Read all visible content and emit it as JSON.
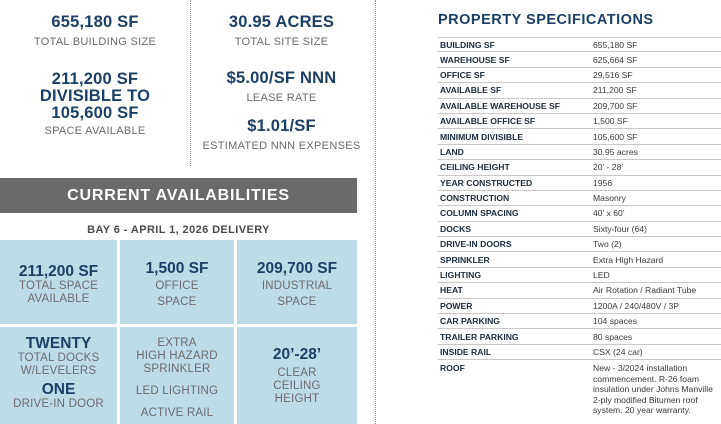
{
  "stats": {
    "building_size": {
      "value": "655,180 SF",
      "label": "TOTAL BUILDING SIZE"
    },
    "site_size": {
      "value": "30.95 ACRES",
      "label": "TOTAL SITE SIZE"
    },
    "space_available": {
      "value_line1": "211,200 SF",
      "value_line2": "DIVISIBLE TO",
      "value_line3": "105,600 SF",
      "label": "SPACE AVAILABLE"
    },
    "lease_rate": {
      "value": "$5.00/SF NNN",
      "label": "LEASE RATE"
    },
    "nnn_expenses": {
      "value": "$1.01/SF",
      "label": "ESTIMATED NNN EXPENSES"
    }
  },
  "availabilities": {
    "title": "CURRENT AVAILABILITIES",
    "bay": "BAY 6 - APRIL 1, 2026 DELIVERY",
    "cells": {
      "total_space": {
        "value": "211,200 SF",
        "label1": "TOTAL SPACE",
        "label2": "AVAILABLE"
      },
      "office_space": {
        "value": "1,500 SF",
        "label1": "OFFICE",
        "label2": "SPACE"
      },
      "industrial_space": {
        "value": "209,700 SF",
        "label1": "INDUSTRIAL",
        "label2": "SPACE"
      },
      "docks": {
        "value": "TWENTY",
        "label1": "TOTAL DOCKS",
        "label2": "W/LEVELERS",
        "value2": "ONE",
        "label3": "DRIVE-IN DOOR"
      },
      "features": {
        "line1": "EXTRA",
        "line2": "HIGH HAZARD",
        "line3": "SPRINKLER",
        "line4": "LED LIGHTING",
        "line5": "ACTIVE RAIL"
      },
      "height": {
        "value": "20’-28’",
        "label1": "CLEAR",
        "label2": "CEILING",
        "label3": "HEIGHT"
      }
    }
  },
  "specs": {
    "title": "PROPERTY SPECIFICATIONS",
    "rows": [
      {
        "k": "BUILDING SF",
        "v": "655,180 SF"
      },
      {
        "k": "WAREHOUSE SF",
        "v": "625,664 SF"
      },
      {
        "k": "OFFICE SF",
        "v": "29,516 SF"
      },
      {
        "k": "AVAILABLE SF",
        "v": "211,200 SF"
      },
      {
        "k": "AVAILABLE WAREHOUSE SF",
        "v": "209,700 SF"
      },
      {
        "k": "AVAILABLE OFFICE SF",
        "v": "1,500 SF"
      },
      {
        "k": "MINIMUM DIVISIBLE",
        "v": "105,600 SF"
      },
      {
        "k": "LAND",
        "v": "30.95 acres"
      },
      {
        "k": "CEILING HEIGHT",
        "v": "20’ - 28’"
      },
      {
        "k": "YEAR CONSTRUCTED",
        "v": "1956"
      },
      {
        "k": "CONSTRUCTION",
        "v": "Masonry"
      },
      {
        "k": "COLUMN SPACING",
        "v": "40’ x 60’"
      },
      {
        "k": "DOCKS",
        "v": "Sixty-four (64)"
      },
      {
        "k": "DRIVE-IN DOORS",
        "v": "Two (2)"
      },
      {
        "k": "SPRINKLER",
        "v": "Extra High Hazard"
      },
      {
        "k": "LIGHTING",
        "v": "LED"
      },
      {
        "k": "HEAT",
        "v": "Air Rotation / Radiant Tube"
      },
      {
        "k": "POWER",
        "v": "1200A / 240/480V / 3P"
      },
      {
        "k": "CAR PARKING",
        "v": "104 spaces"
      },
      {
        "k": "TRAILER PARKING",
        "v": "80 spaces"
      },
      {
        "k": "INSIDE RAIL",
        "v": "CSX (24 car)"
      },
      {
        "k": "ROOF",
        "v": "New - 3/2024 installation commencement. R-26 foam insulation under Johns Manville 2-ply modified Bitumen roof system. 20 year warranty."
      }
    ]
  }
}
